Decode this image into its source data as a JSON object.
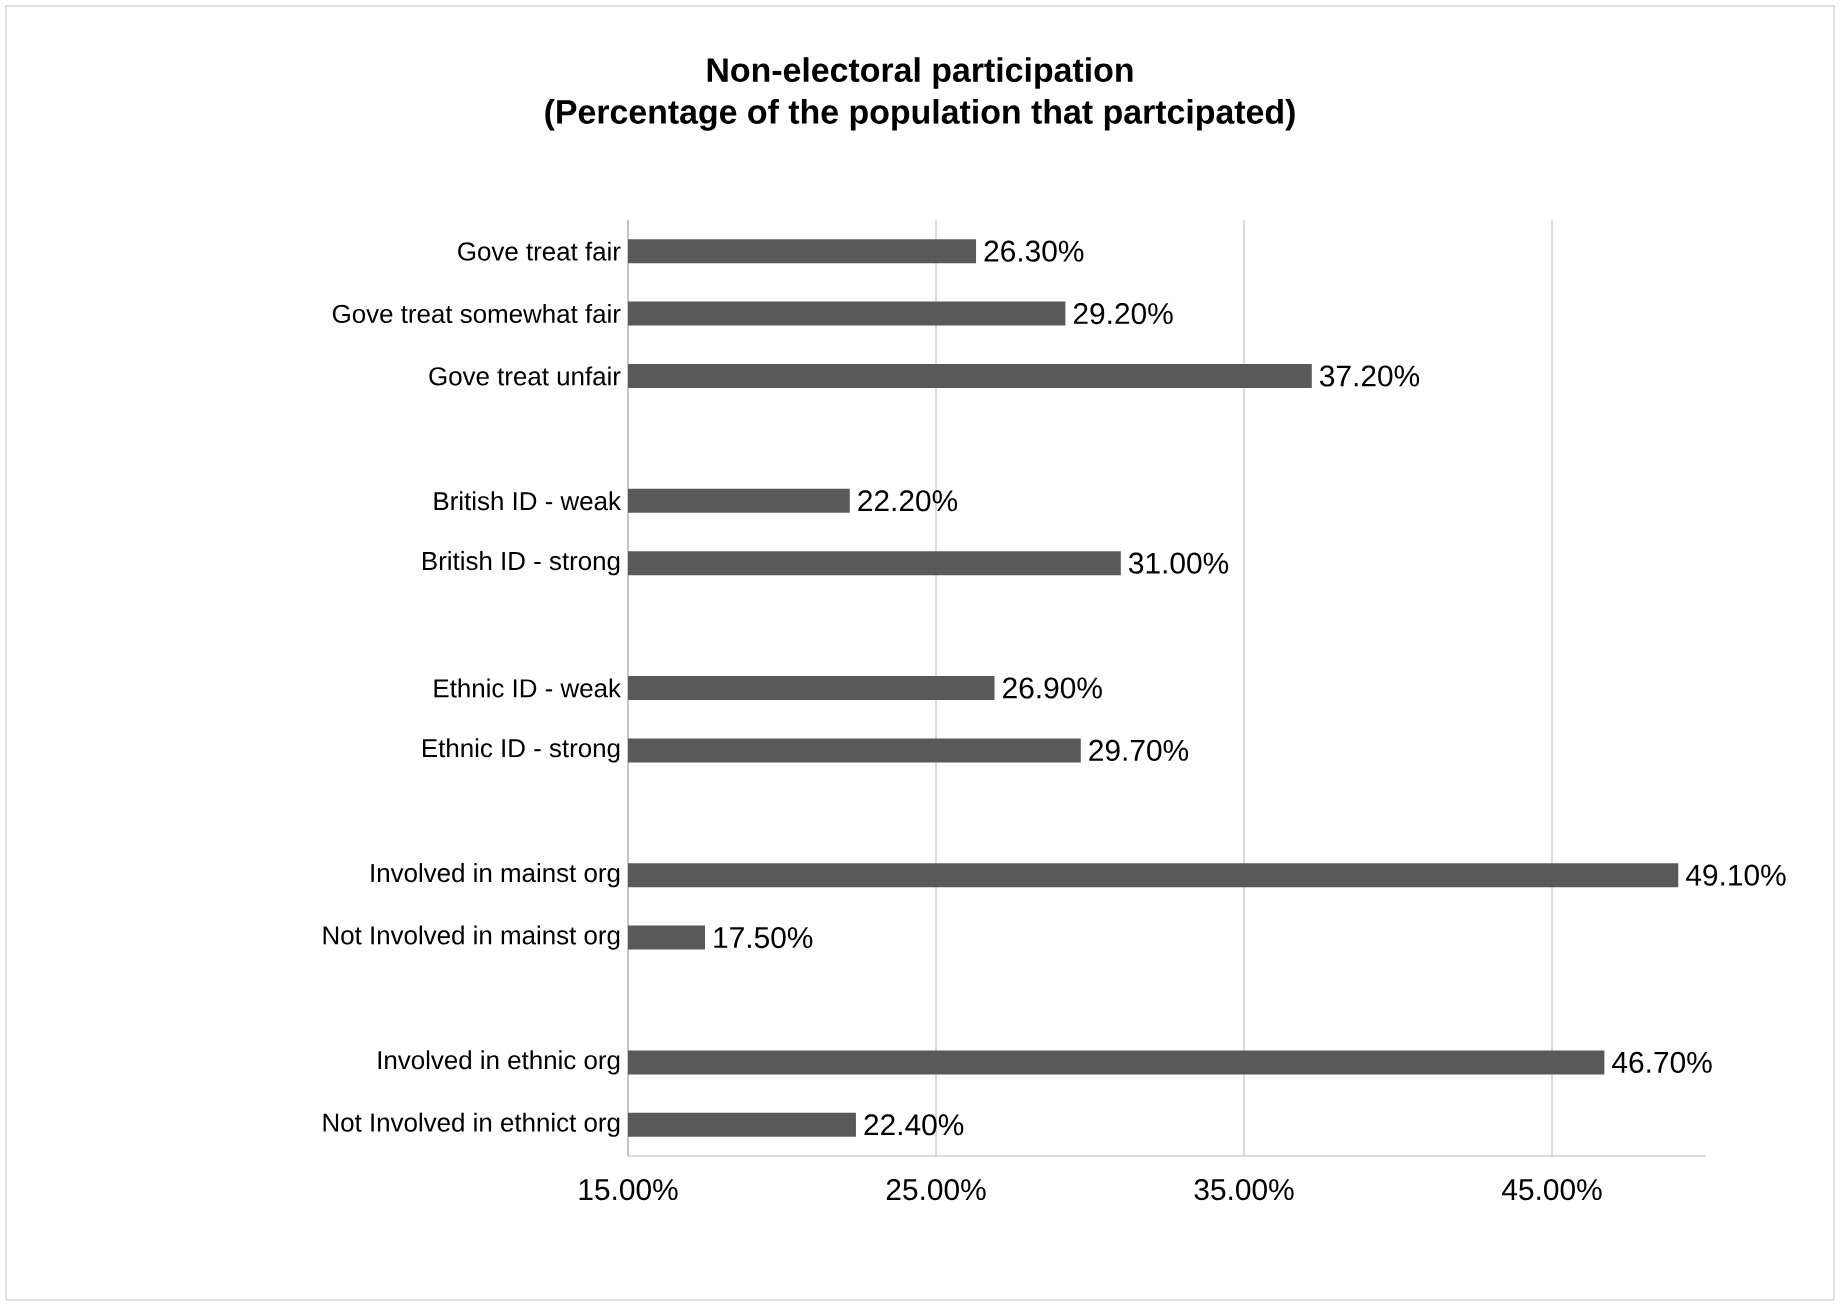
{
  "chart_data": {
    "type": "bar",
    "orientation": "horizontal",
    "title": "Non-electoral participation\n(Percentage of the population that partcipated)",
    "categories": [
      "Gove treat fair",
      "Gove treat somewhat fair",
      "Gove treat unfair",
      null,
      "British ID - weak",
      "British ID - strong",
      null,
      "Ethnic ID - weak",
      "Ethnic ID - strong",
      null,
      "Involved in mainst org",
      "Not Involved in mainst org",
      null,
      "Involved in ethnic org",
      "Not Involved in ethnict org"
    ],
    "values": [
      26.3,
      29.2,
      37.2,
      null,
      22.2,
      31.0,
      null,
      26.9,
      29.7,
      null,
      49.1,
      17.5,
      null,
      46.7,
      22.4
    ],
    "value_labels": [
      "26.30%",
      "29.20%",
      "37.20%",
      null,
      "22.20%",
      "31.00%",
      null,
      "26.90%",
      "29.70%",
      null,
      "49.10%",
      "17.50%",
      null,
      "46.70%",
      "22.40%"
    ],
    "color": "#595959",
    "xlim": [
      15,
      50
    ],
    "xticks": [
      {
        "value": 15,
        "label": "15.00%"
      },
      {
        "value": 25,
        "label": "25.00%"
      },
      {
        "value": 35,
        "label": "35.00%"
      },
      {
        "value": 45,
        "label": "45.00%"
      }
    ],
    "grid": "x"
  }
}
